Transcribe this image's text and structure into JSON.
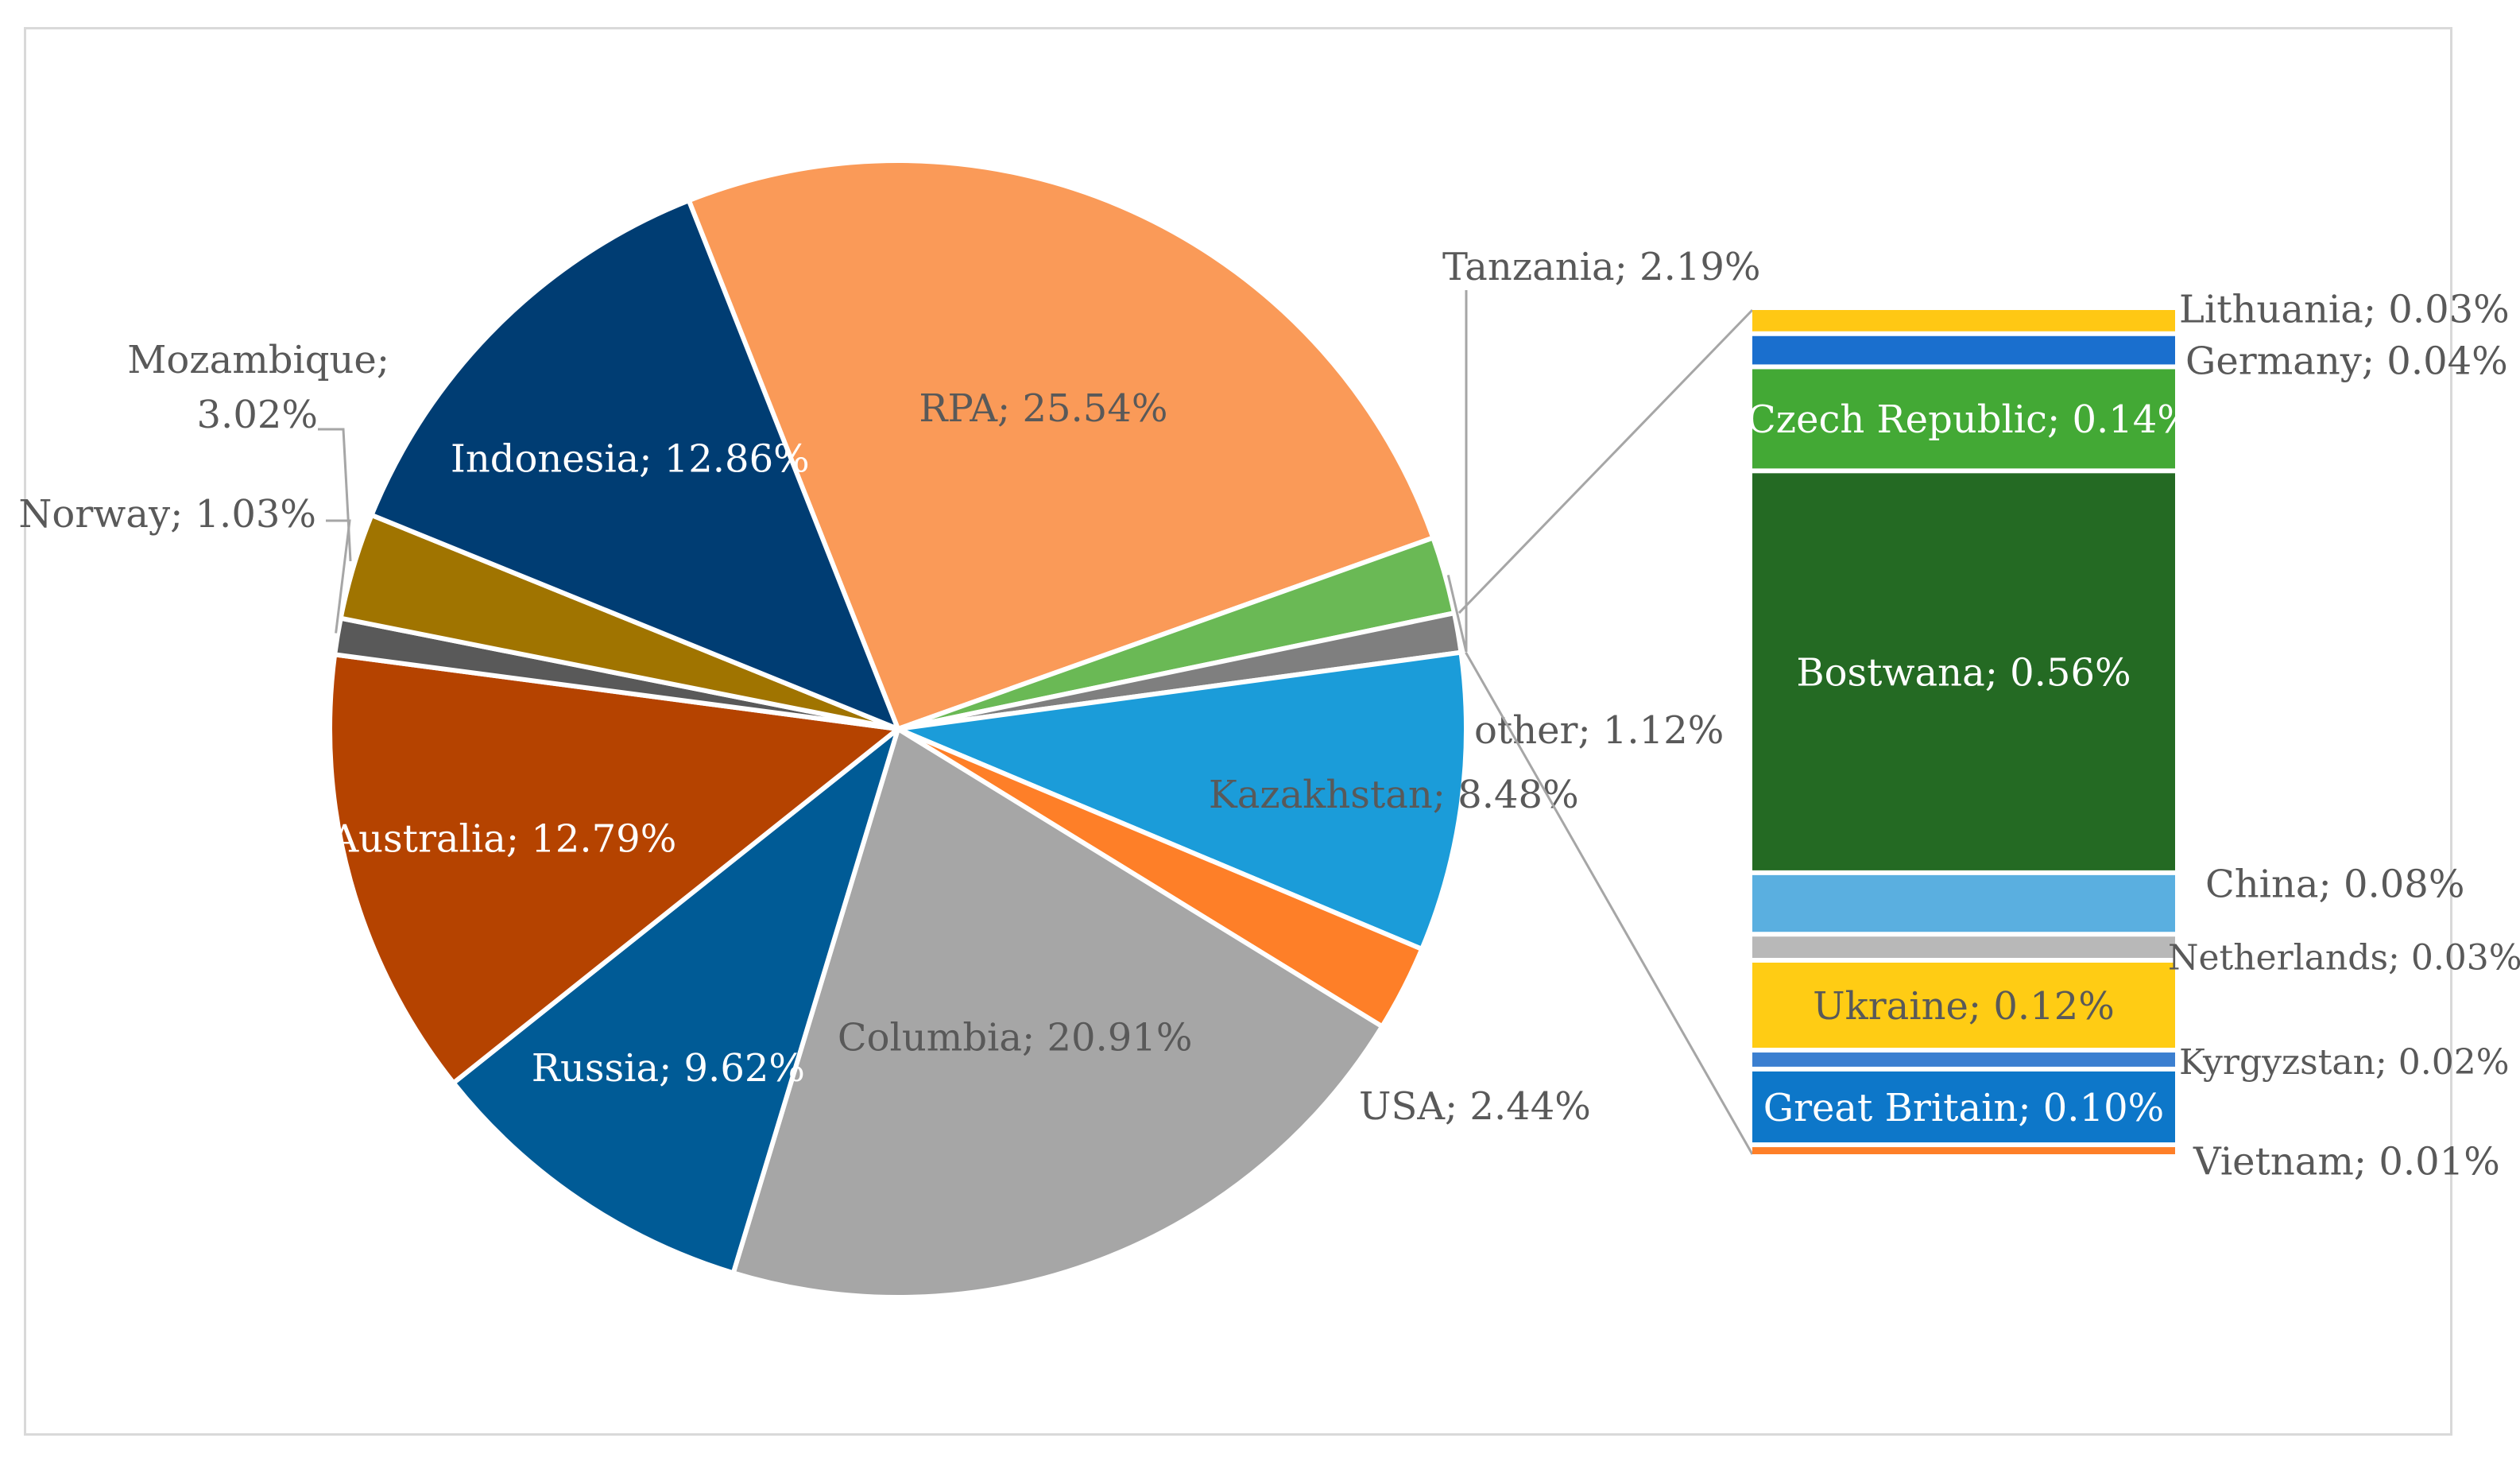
{
  "chart_data": {
    "type": "pie",
    "subtype": "bar-of-pie",
    "title": "",
    "label_format": "{name}; {value}%",
    "pie": [
      {
        "name": "RPA",
        "value": 25.54,
        "color": "#fa9a58",
        "label_color": "#595959"
      },
      {
        "name": "Tanzania",
        "value": 2.19,
        "color": "#6ab955",
        "label_color": "#595959"
      },
      {
        "name": "other",
        "value": 1.12,
        "color": "#7f7f7f",
        "label_color": "#595959"
      },
      {
        "name": "Kazakhstan",
        "value": 8.48,
        "color": "#1b9cd9",
        "label_color": "#595959"
      },
      {
        "name": "USA",
        "value": 2.44,
        "color": "#fe7f28",
        "label_color": "#595959"
      },
      {
        "name": "Columbia",
        "value": 20.91,
        "color": "#a6a6a6",
        "label_color": "#595959"
      },
      {
        "name": "Russia",
        "value": 9.62,
        "color": "#005b96",
        "label_color": "#ffffff"
      },
      {
        "name": "Australia",
        "value": 12.79,
        "color": "#b54300",
        "label_color": "#ffffff"
      },
      {
        "name": "Norway",
        "value": 1.03,
        "color": "#595959",
        "label_color": "#595959"
      },
      {
        "name": "Mozambique",
        "value": 3.02,
        "color": "#a07400",
        "label_color": "#595959"
      },
      {
        "name": "Indonesia",
        "value": 12.86,
        "color": "#003d73",
        "label_color": "#ffffff"
      }
    ],
    "other_breakdown": [
      {
        "name": "Lithuania",
        "value": 0.03,
        "color": "#ffc814",
        "label_color": "#595959"
      },
      {
        "name": "Germany",
        "value": 0.04,
        "color": "#1a6fce",
        "label_color": "#595959"
      },
      {
        "name": "Czech Republic",
        "value": 0.14,
        "color": "#43a935",
        "label_color": "#ffffff"
      },
      {
        "name": "Bostwana",
        "value": 0.56,
        "color": "#246a23",
        "label_color": "#ffffff"
      },
      {
        "name": "China",
        "value": 0.08,
        "color": "#5aafe0",
        "label_color": "#595959"
      },
      {
        "name": "Netherlands",
        "value": 0.03,
        "color": "#b8b8b8",
        "label_color": "#595959"
      },
      {
        "name": "Ukraine",
        "value": 0.12,
        "color": "#ffcc14",
        "label_color": "#595959"
      },
      {
        "name": "Kyrgyzstan",
        "value": 0.02,
        "color": "#3b7fd0",
        "label_color": "#595959"
      },
      {
        "name": "Great Britain",
        "value": 0.1,
        "color": "#0d77c9",
        "label_color": "#ffffff"
      },
      {
        "name": "Vietnam",
        "value": 0.01,
        "color": "#fe7f28",
        "label_color": "#595959"
      }
    ]
  }
}
